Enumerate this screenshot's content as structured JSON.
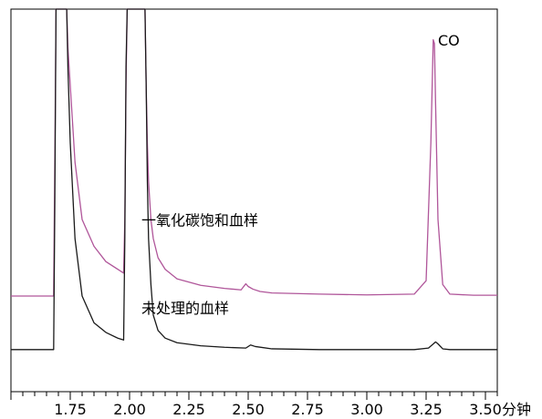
{
  "chart_data": {
    "type": "line",
    "title": "",
    "xlabel": "分钟",
    "ylabel": "",
    "xlim": [
      1.5,
      3.55
    ],
    "ylim": [
      0,
      100
    ],
    "grid": false,
    "legend": "none",
    "xticks": [
      "1.75",
      "2.00",
      "2.25",
      "2.50",
      "2.75",
      "3.00",
      "3.25",
      "3.50"
    ],
    "series": [
      {
        "name": "一氧化碳饱和血样",
        "color": "#b0569a",
        "x": [
          1.5,
          1.68,
          1.685,
          1.69,
          1.7,
          1.71,
          1.72,
          1.73,
          1.735,
          1.74,
          1.75,
          1.77,
          1.8,
          1.85,
          1.9,
          1.95,
          1.975,
          1.98,
          1.985,
          1.99,
          2.0,
          2.02,
          2.05,
          2.06,
          2.065,
          2.07,
          2.075,
          2.08,
          2.09,
          2.1,
          2.12,
          2.15,
          2.2,
          2.3,
          2.4,
          2.47,
          2.49,
          2.5,
          2.52,
          2.55,
          2.6,
          2.8,
          3.0,
          3.2,
          3.25,
          3.27,
          3.28,
          3.285,
          3.29,
          3.3,
          3.32,
          3.35,
          3.45,
          3.55
        ],
        "values": [
          25.0,
          25.0,
          60.0,
          100.0,
          100.0,
          100.0,
          100.0,
          100.0,
          100.0,
          90.0,
          80.0,
          60.0,
          45.0,
          38.0,
          34.0,
          32.0,
          31.0,
          45.0,
          80.0,
          100.0,
          100.0,
          100.0,
          100.0,
          100.0,
          100.0,
          80.0,
          65.0,
          55.0,
          45.0,
          40.0,
          35.0,
          32.0,
          29.5,
          27.8,
          27.0,
          26.6,
          28.2,
          27.5,
          26.8,
          26.2,
          25.8,
          25.5,
          25.3,
          25.5,
          29.0,
          65.0,
          92.0,
          91.0,
          75.0,
          45.0,
          28.0,
          25.5,
          25.2,
          25.2
        ]
      },
      {
        "name": "未处理的血样",
        "color": "#1a1a1a",
        "x": [
          1.5,
          1.68,
          1.685,
          1.69,
          1.7,
          1.71,
          1.72,
          1.73,
          1.735,
          1.74,
          1.75,
          1.77,
          1.8,
          1.85,
          1.9,
          1.95,
          1.975,
          1.98,
          1.985,
          1.99,
          2.0,
          2.02,
          2.05,
          2.06,
          2.065,
          2.07,
          2.075,
          2.08,
          2.09,
          2.1,
          2.12,
          2.15,
          2.2,
          2.3,
          2.4,
          2.49,
          2.51,
          2.53,
          2.6,
          2.8,
          3.0,
          3.2,
          3.26,
          3.29,
          3.3,
          3.32,
          3.35,
          3.45,
          3.55
        ],
        "values": [
          11.0,
          11.0,
          50.0,
          100.0,
          100.0,
          100.0,
          100.0,
          100.0,
          100.0,
          85.0,
          65.0,
          40.0,
          25.0,
          18.0,
          15.5,
          14.0,
          13.5,
          40.0,
          85.0,
          100.0,
          100.0,
          100.0,
          100.0,
          100.0,
          100.0,
          80.0,
          55.0,
          40.0,
          28.0,
          20.0,
          16.0,
          14.0,
          12.8,
          12.0,
          11.6,
          11.4,
          12.2,
          11.8,
          11.2,
          11.0,
          11.0,
          11.0,
          11.4,
          13.0,
          12.5,
          11.2,
          11.0,
          11.0,
          11.0
        ]
      }
    ],
    "annotations": [
      {
        "text": "CO",
        "x": 3.3,
        "y": 90.5
      },
      {
        "text": "一氧化碳饱和血样",
        "x": 2.05,
        "y": 43.5
      },
      {
        "text": "未处理的血样",
        "x": 2.05,
        "y": 20.5
      }
    ]
  }
}
